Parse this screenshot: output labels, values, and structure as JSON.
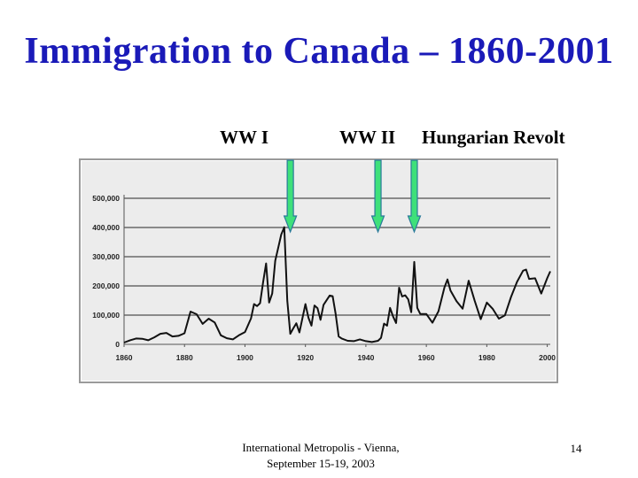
{
  "slide": {
    "title": "Immigration to Canada – 1860-2001",
    "footer_line1": "International Metropolis - Vienna,",
    "footer_line2": "September 15-19, 2003",
    "slide_number": "14"
  },
  "annotations": [
    {
      "label": "WW I",
      "year": 1915
    },
    {
      "label": "WW II",
      "year": 1944
    },
    {
      "label": "Hungarian Revolt",
      "year": 1956
    }
  ],
  "colors": {
    "title": "#1a1ab8",
    "arrow_fill": "#3ee07a",
    "arrow_stroke": "#2a7a9a",
    "plot_bg": "#ececec",
    "frame": "#9a9a9a",
    "line": "#111111"
  },
  "chart_data": {
    "type": "line",
    "title": "",
    "xlabel": "",
    "ylabel": "",
    "xlim": [
      1860,
      2001
    ],
    "ylim": [
      0,
      500000
    ],
    "x_ticks": [
      "1860",
      "1880",
      "1900",
      "1920",
      "1940",
      "1960",
      "1980",
      "2000"
    ],
    "y_ticks": [
      "0",
      "100,000",
      "200,000",
      "300,000",
      "400,000",
      "500,000"
    ],
    "grid": true,
    "series": [
      {
        "x": [
          1860,
          1862,
          1864,
          1866,
          1868,
          1870,
          1872,
          1874,
          1876,
          1878,
          1880,
          1882,
          1884,
          1886,
          1888,
          1890,
          1892,
          1894,
          1896,
          1898,
          1900,
          1902,
          1903,
          1904,
          1905,
          1906,
          1907,
          1908,
          1909,
          1910,
          1911,
          1912,
          1913,
          1914,
          1915,
          1916,
          1917,
          1918,
          1920,
          1921,
          1922,
          1923,
          1924,
          1925,
          1926,
          1928,
          1929,
          1930,
          1931,
          1932,
          1934,
          1936,
          1938,
          1940,
          1942,
          1944,
          1945,
          1946,
          1947,
          1948,
          1949,
          1950,
          1951,
          1952,
          1953,
          1954,
          1955,
          1956,
          1957,
          1958,
          1960,
          1962,
          1964,
          1966,
          1967,
          1968,
          1970,
          1972,
          1974,
          1976,
          1978,
          1980,
          1982,
          1984,
          1986,
          1988,
          1990,
          1992,
          1993,
          1994,
          1996,
          1998,
          2000,
          2001
        ],
        "y": [
          6000,
          14000,
          20000,
          19000,
          14000,
          24000,
          36000,
          39000,
          27000,
          29000,
          38000,
          112000,
          103000,
          70000,
          88000,
          75000,
          31000,
          21000,
          17000,
          31000,
          42000,
          89000,
          138000,
          131000,
          141000,
          212000,
          277000,
          143000,
          174000,
          286000,
          331000,
          376000,
          401000,
          150000,
          36000,
          55000,
          72000,
          41000,
          138000,
          91000,
          64000,
          133000,
          124000,
          84000,
          135000,
          167000,
          165000,
          104000,
          27000,
          20000,
          12000,
          11000,
          17000,
          11000,
          8000,
          12000,
          22000,
          71000,
          64000,
          125000,
          95000,
          73000,
          194000,
          164000,
          168000,
          154000,
          110000,
          282000,
          125000,
          104000,
          104000,
          74000,
          113000,
          195000,
          222000,
          184000,
          148000,
          122000,
          218000,
          149000,
          86000,
          143000,
          121000,
          88000,
          99000,
          162000,
          214000,
          252000,
          256000,
          224000,
          226000,
          174000,
          227000,
          250000
        ]
      }
    ]
  }
}
